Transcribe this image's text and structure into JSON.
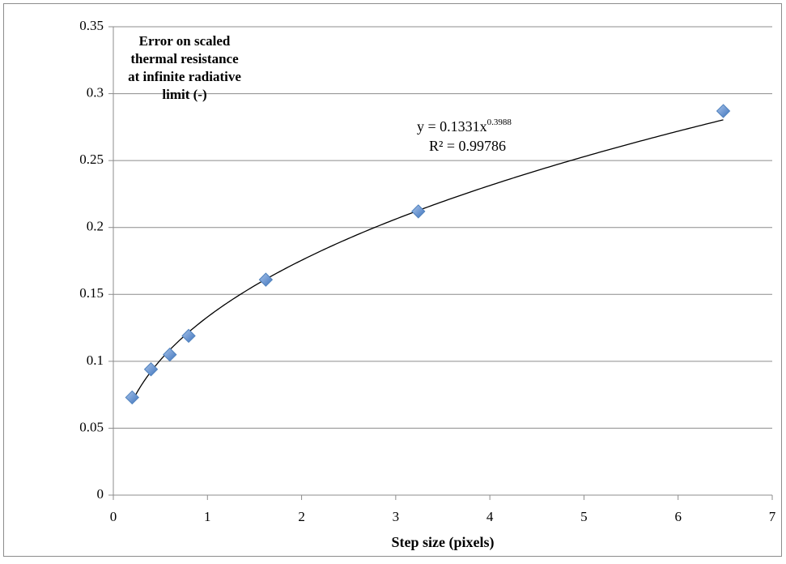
{
  "chart_data": {
    "type": "scatter",
    "x_label": "Step size (pixels)",
    "y_label": [
      "Error on scaled",
      "thermal resistance",
      "at infinite radiative",
      "limit (-)"
    ],
    "series": [
      {
        "name": "Error",
        "color": "#4f81bd",
        "x": [
          0.2,
          0.4,
          0.6,
          0.8,
          1.62,
          3.24,
          6.48
        ],
        "values": [
          0.073,
          0.094,
          0.105,
          0.119,
          0.161,
          0.212,
          0.287
        ]
      }
    ],
    "trendline": {
      "type": "power",
      "coefficient": 0.1331,
      "exponent": 0.3988,
      "r_squared": 0.99786,
      "label": "y = 0.1331x",
      "exponent_label": "0.3988",
      "r_squared_label": "R² = 0.99786"
    },
    "xlim": [
      0,
      7
    ],
    "xticks": [
      0,
      1,
      2,
      3,
      4,
      5,
      6,
      7
    ],
    "ylim": [
      0,
      0.35
    ],
    "yticks": [
      0,
      0.05,
      0.1,
      0.15,
      0.2,
      0.25,
      0.3,
      0.35
    ],
    "grid": true
  }
}
